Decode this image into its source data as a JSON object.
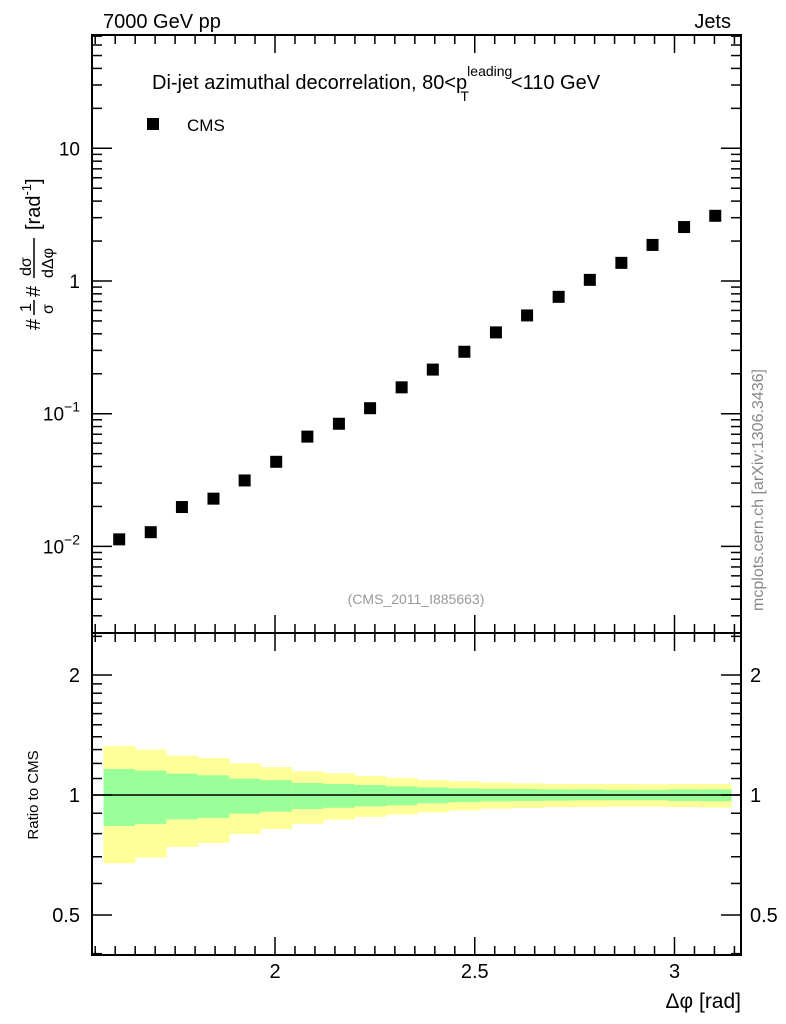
{
  "chart_data": [
    {
      "type": "scatter",
      "title": "Di-jet azimuthal decorrelation, 80<p_T^leading<110 GeV",
      "title_parts": {
        "pre": "Di-jet azimuthal decorrelation, 80<p",
        "sup": "leading",
        "sub": "T",
        "post": "<110 GeV"
      },
      "top_left_label": "7000 GeV pp",
      "top_right_label": "Jets",
      "ylabel_parts": {
        "hash1": "#",
        "num1": "1",
        "den1": "σ",
        "hash2": "#",
        "num2": "dσ",
        "den2": "dΔφ",
        "unit": "[rad",
        "unit_sup": "-1",
        "unit_close": "]"
      },
      "yscale": "log",
      "ylim": [
        0.0022,
        71
      ],
      "xlim": [
        1.54,
        3.168
      ],
      "yticks": [
        {
          "v": 10,
          "base": "10",
          "exp": ""
        },
        {
          "v": 1,
          "base": "1",
          "exp": ""
        },
        {
          "v": 0.1,
          "base": "10",
          "exp": "−1"
        },
        {
          "v": 0.01,
          "base": "10",
          "exp": "−2"
        }
      ],
      "legend": {
        "label": "CMS",
        "placement": "top-left"
      },
      "series": [
        {
          "name": "CMS",
          "x": [
            1.61,
            1.689,
            1.767,
            1.846,
            1.924,
            2.003,
            2.081,
            2.16,
            2.238,
            2.317,
            2.395,
            2.474,
            2.553,
            2.631,
            2.71,
            2.788,
            2.867,
            2.945,
            3.024,
            3.102
          ],
          "y": [
            0.0113,
            0.0128,
            0.0198,
            0.0229,
            0.0314,
            0.0434,
            0.0672,
            0.084,
            0.11,
            0.158,
            0.215,
            0.293,
            0.41,
            0.55,
            0.76,
            1.02,
            1.37,
            1.87,
            2.55,
            3.1
          ]
        }
      ],
      "watermark": "(CMS_2011_I885663)",
      "side_label": "mcplots.cern.ch [arXiv:1306.3436]"
    },
    {
      "type": "area",
      "ylabel": "Ratio to CMS",
      "xlabel": "Δφ [rad]",
      "yscale": "log",
      "ylim": [
        0.4,
        2.55
      ],
      "xlim": [
        1.54,
        3.168
      ],
      "xticks": [
        {
          "v": 2,
          "label": "2"
        },
        {
          "v": 2.5,
          "label": "2.5"
        },
        {
          "v": 3,
          "label": "3"
        }
      ],
      "yticks": [
        {
          "v": 2,
          "label": "2"
        },
        {
          "v": 1,
          "label": "1"
        },
        {
          "v": 0.5,
          "label": "0.5"
        }
      ],
      "bin_edges_start": 1.5708,
      "bin_width": 0.07854,
      "bands": {
        "yellow_color": "#ffff99",
        "green_color": "#99ff99",
        "yellow_up": [
          1.327,
          1.3,
          1.255,
          1.238,
          1.201,
          1.175,
          1.147,
          1.134,
          1.116,
          1.103,
          1.09,
          1.082,
          1.074,
          1.07,
          1.066,
          1.066,
          1.065,
          1.064,
          1.066,
          1.066
        ],
        "green_up": [
          1.162,
          1.151,
          1.131,
          1.121,
          1.099,
          1.089,
          1.072,
          1.066,
          1.06,
          1.051,
          1.045,
          1.039,
          1.035,
          1.035,
          1.033,
          1.033,
          1.03,
          1.03,
          1.033,
          1.033
        ],
        "green_down": [
          0.836,
          0.846,
          0.869,
          0.876,
          0.898,
          0.908,
          0.922,
          0.929,
          0.937,
          0.942,
          0.953,
          0.959,
          0.964,
          0.966,
          0.968,
          0.97,
          0.97,
          0.97,
          0.966,
          0.964
        ],
        "yellow_down": [
          0.674,
          0.696,
          0.741,
          0.758,
          0.798,
          0.822,
          0.847,
          0.867,
          0.881,
          0.893,
          0.905,
          0.915,
          0.924,
          0.928,
          0.932,
          0.933,
          0.935,
          0.935,
          0.932,
          0.93
        ]
      }
    }
  ]
}
